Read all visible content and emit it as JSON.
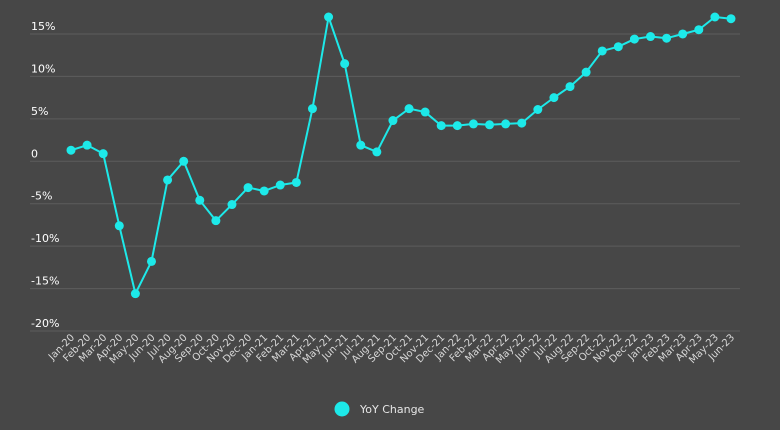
{
  "chart_data": {
    "type": "line",
    "title": "",
    "xlabel": "",
    "ylabel": "",
    "x": [
      "Jan-20",
      "Feb-20",
      "Mar-20",
      "Apr-20",
      "May-20",
      "Jun-20",
      "Jul-20",
      "Aug-20",
      "Sep-20",
      "Oct-20",
      "Nov-20",
      "Dec-20",
      "Jan-21",
      "Feb-21",
      "Mar-21",
      "Apr-21",
      "May-21",
      "Jun-21",
      "Jul-21",
      "Aug-21",
      "Sep-21",
      "Oct-21",
      "Nov-21",
      "Dec-21",
      "Jan-22",
      "Feb-22",
      "Mar-22",
      "Apr-22",
      "May-22",
      "Jun-22",
      "Jul-22",
      "Aug-22",
      "Sep-22",
      "Oct-22",
      "Nov-22",
      "Dec-22",
      "Jan-23",
      "Feb-23",
      "Mar-23",
      "Apr-23",
      "May-23",
      "Jun-23"
    ],
    "series": [
      {
        "name": "YoY Change",
        "values": [
          1.3,
          1.9,
          0.9,
          -7.6,
          -15.6,
          -11.8,
          -2.2,
          0.0,
          -4.6,
          -7.0,
          -5.1,
          -3.1,
          -3.5,
          -2.8,
          -2.5,
          6.2,
          17.0,
          11.5,
          1.9,
          1.1,
          4.8,
          6.2,
          5.8,
          4.2,
          4.2,
          4.4,
          4.3,
          4.4,
          4.5,
          6.1,
          7.5,
          8.8,
          10.5,
          13.0,
          13.5,
          14.4,
          14.7,
          14.5,
          15.0,
          15.5,
          17.0,
          16.8
        ],
        "color": "#1de9e9"
      }
    ],
    "yticks": [
      15,
      10,
      5,
      0,
      -5,
      -10,
      -15,
      -20
    ],
    "ytick_labels": [
      "15%",
      "10%",
      "5%",
      "0",
      "-5%",
      "-10%",
      "-15%",
      "-20%"
    ],
    "ylim": [
      -20,
      17
    ],
    "grid": true,
    "legend": "bottom-center"
  }
}
